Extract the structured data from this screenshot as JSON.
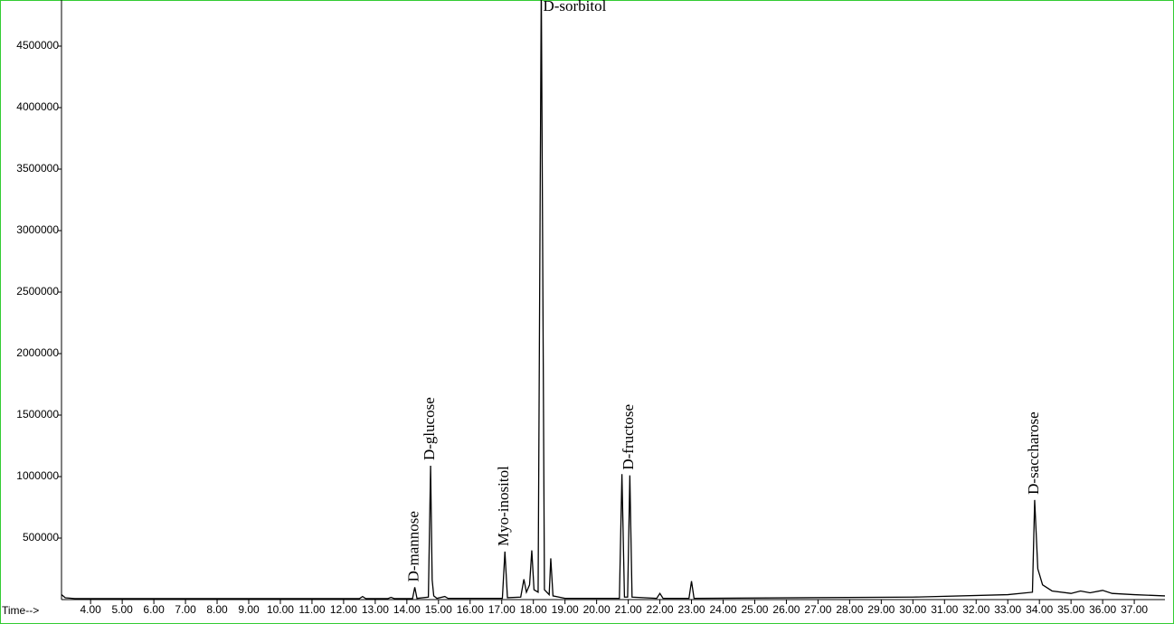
{
  "chart_data": {
    "type": "line",
    "x_label": "Time-->",
    "xlim": [
      3.08,
      37.97
    ],
    "ylim": [
      0,
      4875000
    ],
    "xticks": [
      {
        "value": 4,
        "label": "4.00"
      },
      {
        "value": 5,
        "label": "5.00"
      },
      {
        "value": 6,
        "label": "6.00"
      },
      {
        "value": 7,
        "label": "7.00"
      },
      {
        "value": 8,
        "label": "8.00"
      },
      {
        "value": 9,
        "label": "9.00"
      },
      {
        "value": 10,
        "label": "10.00"
      },
      {
        "value": 11,
        "label": "11.00"
      },
      {
        "value": 12,
        "label": "12.00"
      },
      {
        "value": 13,
        "label": "13.00"
      },
      {
        "value": 14,
        "label": "14.00"
      },
      {
        "value": 15,
        "label": "15.00"
      },
      {
        "value": 16,
        "label": "16.00"
      },
      {
        "value": 17,
        "label": "17.00"
      },
      {
        "value": 18,
        "label": "18.00"
      },
      {
        "value": 19,
        "label": "19.00"
      },
      {
        "value": 20,
        "label": "20.00"
      },
      {
        "value": 21,
        "label": "21.00"
      },
      {
        "value": 22,
        "label": "22.00"
      },
      {
        "value": 23,
        "label": "23.00"
      },
      {
        "value": 24,
        "label": "24.00"
      },
      {
        "value": 25,
        "label": "25.00"
      },
      {
        "value": 26,
        "label": "26.00"
      },
      {
        "value": 27,
        "label": "27.00"
      },
      {
        "value": 28,
        "label": "28.00"
      },
      {
        "value": 29,
        "label": "29.00"
      },
      {
        "value": 30,
        "label": "30.00"
      },
      {
        "value": 31,
        "label": "31.00"
      },
      {
        "value": 32,
        "label": "32.00"
      },
      {
        "value": 33,
        "label": "33.00"
      },
      {
        "value": 34,
        "label": "34.00"
      },
      {
        "value": 35,
        "label": "35.00"
      },
      {
        "value": 36,
        "label": "36.00"
      },
      {
        "value": 37,
        "label": "37.00"
      }
    ],
    "yticks": [
      500000,
      1000000,
      1500000,
      2000000,
      2500000,
      3000000,
      3500000,
      4000000,
      4500000
    ],
    "x": [
      3.08,
      3.2,
      3.5,
      12.5,
      12.6,
      12.7,
      13.4,
      13.5,
      13.6,
      14.18,
      14.25,
      14.32,
      14.68,
      14.75,
      14.8,
      14.85,
      14.95,
      15.2,
      15.3,
      17.02,
      17.1,
      17.18,
      17.6,
      17.7,
      17.78,
      17.88,
      17.95,
      18.02,
      18.15,
      18.25,
      18.35,
      18.5,
      18.55,
      18.62,
      19.0,
      20.72,
      20.8,
      20.88,
      20.98,
      21.05,
      21.12,
      21.9,
      22.0,
      22.1,
      22.92,
      23.0,
      23.08,
      30.0,
      33.0,
      33.78,
      33.85,
      33.95,
      34.1,
      34.4,
      35.0,
      35.3,
      35.6,
      36.0,
      36.3,
      37.0,
      37.97
    ],
    "series": [
      {
        "color": "#000000",
        "values": [
          40000,
          15000,
          8000,
          8000,
          25000,
          8000,
          8000,
          18000,
          8000,
          8000,
          100000,
          10000,
          20000,
          1088000,
          160000,
          30000,
          10000,
          25000,
          10000,
          10000,
          390000,
          15000,
          20000,
          165000,
          60000,
          120000,
          400000,
          80000,
          60000,
          5000000,
          80000,
          40000,
          335000,
          30000,
          10000,
          10000,
          1020000,
          20000,
          20000,
          1010000,
          20000,
          10000,
          50000,
          10000,
          10000,
          150000,
          10000,
          20000,
          40000,
          60000,
          810000,
          250000,
          120000,
          70000,
          50000,
          70000,
          55000,
          75000,
          50000,
          40000,
          30000
        ]
      }
    ],
    "annotations": [
      {
        "text": "D-mannose",
        "x": 14.25
      },
      {
        "text": "D-glucose",
        "x": 14.75
      },
      {
        "text": "Myo-inositol",
        "x": 17.1
      },
      {
        "text": "D-sorbitol",
        "x": 18.25
      },
      {
        "text": "D-fructose",
        "x": 21.05
      },
      {
        "text": "D-saccharose",
        "x": 33.85
      }
    ]
  }
}
